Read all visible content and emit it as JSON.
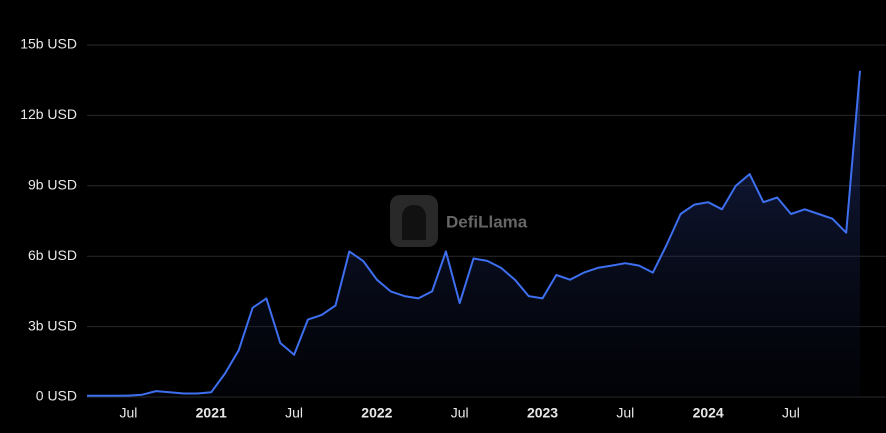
{
  "chart_data": {
    "type": "area",
    "watermark": "DefiLlama",
    "categories": [
      null,
      null,
      null,
      "Jul",
      null,
      null,
      null,
      null,
      null,
      "2021",
      null,
      null,
      null,
      null,
      null,
      "Jul",
      null,
      null,
      null,
      null,
      null,
      "2022",
      null,
      null,
      null,
      null,
      null,
      "Jul",
      null,
      null,
      null,
      null,
      null,
      "2023",
      null,
      null,
      null,
      null,
      null,
      "Jul",
      null,
      null,
      null,
      null,
      null,
      "2024",
      null,
      null,
      null,
      null,
      null,
      "Jul",
      null,
      null,
      null,
      null,
      null
    ],
    "values": [
      0.05,
      0.05,
      0.05,
      0.06,
      0.1,
      0.25,
      0.2,
      0.15,
      0.15,
      0.2,
      1.0,
      2.0,
      3.8,
      4.2,
      2.3,
      1.8,
      3.3,
      3.5,
      3.9,
      6.2,
      5.8,
      5.0,
      4.5,
      4.3,
      4.2,
      4.5,
      6.2,
      4.0,
      5.9,
      5.8,
      5.5,
      5.0,
      4.3,
      4.2,
      5.2,
      5.0,
      5.3,
      5.5,
      5.6,
      5.7,
      5.6,
      5.3,
      6.5,
      7.8,
      8.2,
      8.3,
      8.0,
      9.0,
      9.5,
      8.3,
      8.5,
      7.8,
      8.0,
      7.8,
      7.6,
      7.0,
      13.9
    ],
    "color": "#3e6ff0",
    "ylim": [
      0,
      15
    ],
    "yticks": [
      {
        "value": 0,
        "label": "0 USD"
      },
      {
        "value": 3,
        "label": "3b USD"
      },
      {
        "value": 6,
        "label": "6b USD"
      },
      {
        "value": 9,
        "label": "9b USD"
      },
      {
        "value": 12,
        "label": "12b USD"
      },
      {
        "value": 15,
        "label": "15b USD"
      }
    ],
    "grid": true
  }
}
